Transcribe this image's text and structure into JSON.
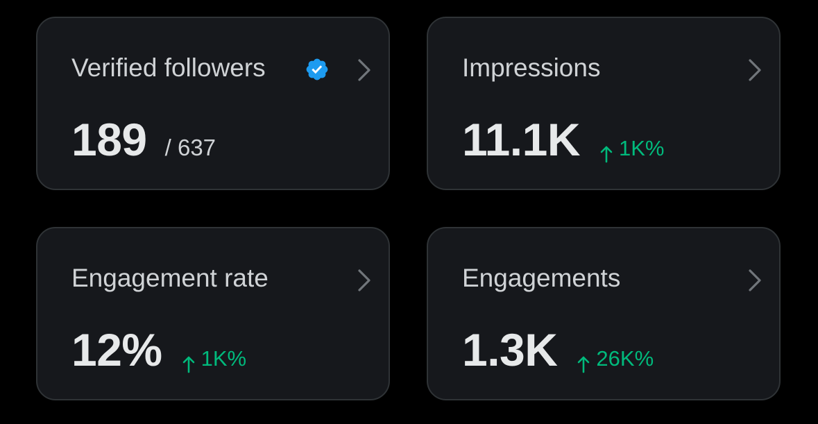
{
  "colors": {
    "background": "#000000",
    "card_background": "#16181c",
    "card_border": "#2f3336",
    "title": "#d0d3d6",
    "value": "#e7e9ea",
    "positive_change": "#00ba7c",
    "verified_badge": "#1d9bf0",
    "chevron": "#71767b"
  },
  "cards": [
    {
      "title": "Verified followers",
      "value": "189",
      "total": "/ 637",
      "icon": "verified-badge-icon"
    },
    {
      "title": "Impressions",
      "value": "11.1K",
      "change": "1K%",
      "change_direction": "up"
    },
    {
      "title": "Engagement rate",
      "value": "12%",
      "change": "1K%",
      "change_direction": "up"
    },
    {
      "title": "Engagements",
      "value": "1.3K",
      "change": "26K%",
      "change_direction": "up"
    }
  ]
}
